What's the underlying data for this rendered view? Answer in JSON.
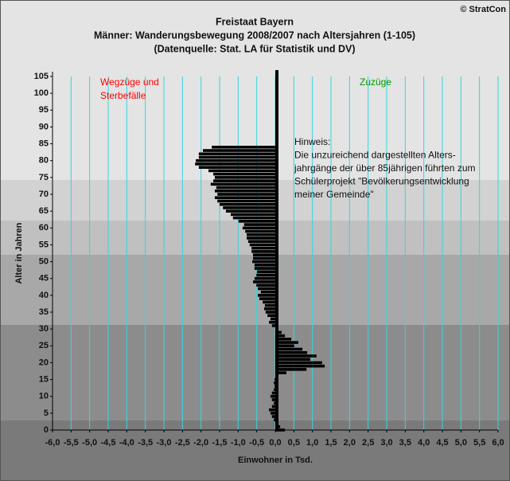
{
  "chart_data": {
    "type": "hbar",
    "title": [
      "Freistaat Bayern",
      "Männer: Wanderungsbewegung 2008/2007 nach Altersjahren (1-105)",
      "(Datenquelle: Stat. LA für Statistik und DV)"
    ],
    "copyright": "© StratCon",
    "x_label": "Einwohner in Tsd.",
    "y_label": "Alter in Jahren",
    "left_label": [
      "Wegzüge und",
      "Sterbefälle"
    ],
    "right_label": "Zuzüge",
    "note": [
      "Hinweis:",
      "Die unzureichend dargestellten Alters-",
      "jahrgänge der über 85jährigen führten zum",
      "Schülerprojekt \"Bevölkerungsentwicklung",
      "meiner Gemeinde\""
    ],
    "color": "#000000",
    "grid_color": "#33d6e0",
    "y": [
      0,
      1,
      2,
      3,
      4,
      5,
      6,
      7,
      8,
      9,
      10,
      11,
      12,
      13,
      14,
      15,
      16,
      17,
      18,
      19,
      20,
      21,
      22,
      23,
      24,
      25,
      26,
      27,
      28,
      29,
      30,
      31,
      32,
      33,
      34,
      35,
      36,
      37,
      38,
      39,
      40,
      41,
      42,
      43,
      44,
      45,
      46,
      47,
      48,
      49,
      50,
      51,
      52,
      53,
      54,
      55,
      56,
      57,
      58,
      59,
      60,
      61,
      62,
      63,
      64,
      65,
      66,
      67,
      68,
      69,
      70,
      71,
      72,
      73,
      74,
      75,
      76,
      77,
      78,
      79,
      80,
      81,
      82,
      83,
      84,
      85,
      86,
      87,
      88,
      89,
      90,
      91,
      92,
      93,
      94,
      95,
      96,
      97,
      98,
      99,
      100,
      101,
      102,
      103,
      104,
      105
    ],
    "values": [
      0.26,
      0.13,
      0,
      -0.04,
      -0.09,
      -0.13,
      -0.17,
      -0.09,
      -0.04,
      -0.09,
      -0.13,
      -0.09,
      -0.04,
      -0.02,
      -0.04,
      -0.02,
      0,
      0.3,
      0.84,
      1.33,
      1.26,
      0.94,
      1.11,
      0.86,
      0.73,
      0.51,
      0.62,
      0.43,
      0.26,
      0.17,
      0,
      -0.09,
      -0.17,
      -0.13,
      -0.21,
      -0.26,
      -0.3,
      -0.28,
      -0.34,
      -0.43,
      -0.47,
      -0.39,
      -0.47,
      -0.51,
      -0.6,
      -0.56,
      -0.51,
      -0.49,
      -0.56,
      -0.56,
      -0.62,
      -0.6,
      -0.6,
      -0.64,
      -0.64,
      -0.69,
      -0.73,
      -0.77,
      -0.77,
      -0.81,
      -0.88,
      -0.84,
      -0.99,
      -1.14,
      -1.2,
      -1.33,
      -1.41,
      -1.5,
      -1.56,
      -1.63,
      -1.56,
      -1.63,
      -1.59,
      -1.74,
      -1.67,
      -1.63,
      -1.67,
      -1.8,
      -2.06,
      -2.16,
      -2.14,
      -2.06,
      -2.06,
      -1.95,
      -1.71,
      0,
      0,
      0,
      0,
      0,
      0,
      0,
      0,
      0,
      0,
      0,
      0,
      0,
      0,
      0,
      0,
      0,
      0,
      0,
      0,
      0
    ],
    "xlim": [
      -6,
      6
    ],
    "ylim": [
      0,
      105
    ],
    "xticks": [
      {
        "value": -6,
        "label": "-6,0"
      },
      {
        "value": -5.5,
        "label": "-5,5"
      },
      {
        "value": -5,
        "label": "-5,0"
      },
      {
        "value": -4.5,
        "label": "-4,5"
      },
      {
        "value": -4,
        "label": "-4,0"
      },
      {
        "value": -3.5,
        "label": "-3,5"
      },
      {
        "value": -3,
        "label": "-3,0"
      },
      {
        "value": -2.5,
        "label": "-2,5"
      },
      {
        "value": -2,
        "label": "-2,0"
      },
      {
        "value": -1.5,
        "label": "-1,5"
      },
      {
        "value": -1,
        "label": "-1,0"
      },
      {
        "value": -0.5,
        "label": "-0,5"
      },
      {
        "value": 0,
        "label": "0,0"
      },
      {
        "value": 0.5,
        "label": "0,5"
      },
      {
        "value": 1,
        "label": "1,0"
      },
      {
        "value": 1.5,
        "label": "1,5"
      },
      {
        "value": 2,
        "label": "2,0"
      },
      {
        "value": 2.5,
        "label": "2,5"
      },
      {
        "value": 3,
        "label": "3,0"
      },
      {
        "value": 3.5,
        "label": "3,5"
      },
      {
        "value": 4,
        "label": "4,0"
      },
      {
        "value": 4.5,
        "label": "4,5"
      },
      {
        "value": 5,
        "label": "5,0"
      },
      {
        "value": 5.5,
        "label": "5,5"
      },
      {
        "value": 6,
        "label": "6,0"
      }
    ],
    "yticks": [
      0,
      5,
      10,
      15,
      20,
      25,
      30,
      35,
      40,
      45,
      50,
      55,
      60,
      65,
      70,
      75,
      80,
      85,
      90,
      95,
      100,
      105
    ],
    "grid": true
  }
}
